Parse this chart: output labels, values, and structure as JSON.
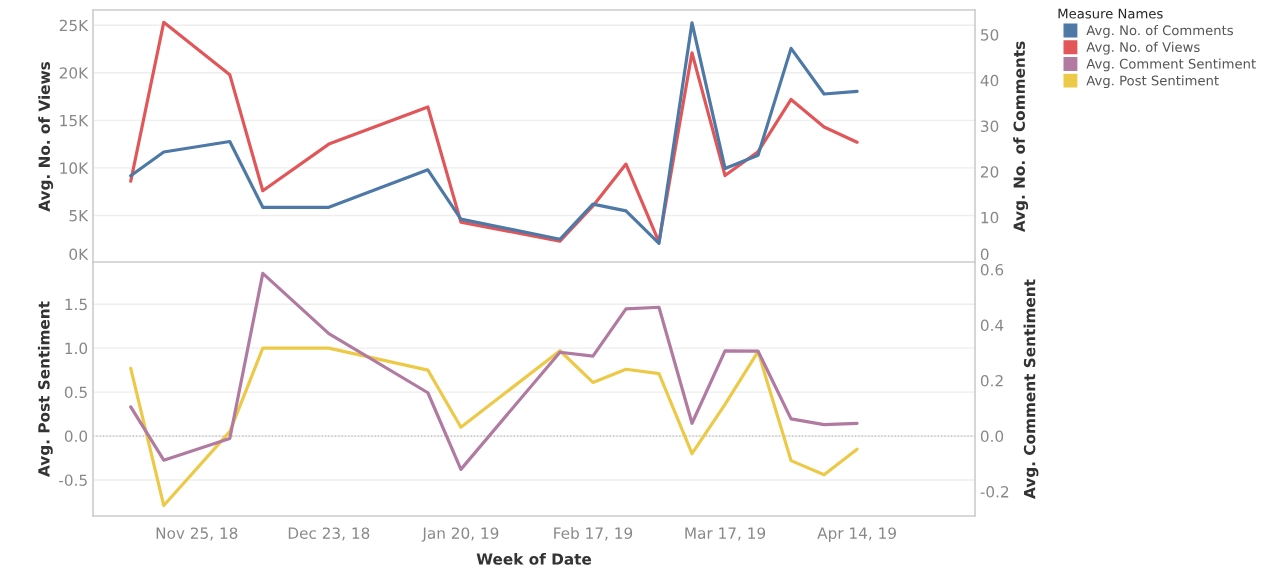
{
  "chart_data": [
    {
      "type": "line",
      "ylabel": "Avg. No. of Views",
      "y2label": "Avg. No. of Comments",
      "legend_title": "Measure Names",
      "legend": "top right",
      "x": [
        "2018-11-11",
        "2018-11-18",
        "2018-12-02",
        "2018-12-09",
        "2018-12-23",
        "2019-01-13",
        "2019-01-20",
        "2019-02-10",
        "2019-02-17",
        "2019-02-24",
        "2019-03-03",
        "2019-03-10",
        "2019-03-17",
        "2019-03-24",
        "2019-03-31",
        "2019-04-07",
        "2019-04-14"
      ],
      "xlim": [
        "2018-11-03",
        "2019-05-09"
      ],
      "xticks": [
        {
          "value": "2018-11-25",
          "label": null
        },
        {
          "value": "2018-12-23",
          "label": null
        },
        {
          "value": "2019-01-20",
          "label": null
        },
        {
          "value": "2019-02-17",
          "label": null
        },
        {
          "value": "2019-03-17",
          "label": null
        },
        {
          "value": "2019-04-14",
          "label": null
        }
      ],
      "ylim": [
        0,
        26600
      ],
      "yticks": [
        {
          "value": 0,
          "label": "0K"
        },
        {
          "value": 5000,
          "label": "5K"
        },
        {
          "value": 10000,
          "label": "10K"
        },
        {
          "value": 15000,
          "label": "15K"
        },
        {
          "value": 20000,
          "label": "20K"
        },
        {
          "value": 25000,
          "label": "25K"
        }
      ],
      "y2lim": [
        0,
        55.4
      ],
      "y2ticks": [
        0,
        10,
        20,
        30,
        40,
        50
      ],
      "tick_labels": "y",
      "grid": "y",
      "series": [
        {
          "name": "Avg. No. of Comments",
          "color": "#4e79a7",
          "axis": "y2",
          "values": [
            19.1,
            24.3,
            26.6,
            12.2,
            12.2,
            20.4,
            9.6,
            5.2,
            12.9,
            11.4,
            4.3,
            52.6,
            20.7,
            23.6,
            47.0,
            37.0,
            37.6
          ]
        },
        {
          "name": "Avg. No. of Views",
          "color": "#e15759",
          "values": [
            8600,
            25300,
            19800,
            7600,
            12500,
            16400,
            4300,
            2300,
            6000,
            10400,
            2200,
            22100,
            9200,
            11700,
            17200,
            14300,
            12700
          ]
        }
      ]
    },
    {
      "type": "line",
      "xlabel": "Week of Date",
      "ylabel": "Avg. Post Sentiment",
      "y2label": "Avg. Comment Sentiment",
      "legend": "top right",
      "x": [
        "2018-11-11",
        "2018-11-18",
        "2018-12-02",
        "2018-12-09",
        "2018-12-23",
        "2019-01-13",
        "2019-01-20",
        "2019-02-10",
        "2019-02-17",
        "2019-02-24",
        "2019-03-03",
        "2019-03-10",
        "2019-03-17",
        "2019-03-24",
        "2019-03-31",
        "2019-04-07",
        "2019-04-14"
      ],
      "xlim": [
        "2018-11-03",
        "2019-05-09"
      ],
      "xticks": [
        {
          "value": "2018-11-25",
          "label": "Nov 25, 18"
        },
        {
          "value": "2018-12-23",
          "label": "Dec 23, 18"
        },
        {
          "value": "2019-01-20",
          "label": "Jan 20, 19"
        },
        {
          "value": "2019-02-17",
          "label": "Feb 17, 19"
        },
        {
          "value": "2019-03-17",
          "label": "Mar 17, 19"
        },
        {
          "value": "2019-04-14",
          "label": "Apr 14, 19"
        }
      ],
      "ylim": [
        -0.91,
        1.98
      ],
      "yticks": [
        {
          "value": -0.5,
          "label": "-0.5"
        },
        {
          "value": 0,
          "label": "0.0"
        },
        0.5,
        {
          "value": 1,
          "label": "1.0"
        },
        1.5
      ],
      "y2lim": [
        -0.288,
        0.627
      ],
      "y2ticks": [
        {
          "value": -0.2,
          "label": "-0.2"
        },
        {
          "value": 0,
          "label": "0.0"
        },
        0.2,
        0.4,
        0.6
      ],
      "grid": "y",
      "ref_lines": [
        {
          "axis": "y",
          "value": 0,
          "label": null,
          "color": "#bbbbbb",
          "line_style": "dotted"
        }
      ],
      "series": [
        {
          "name": "Avg. Comment Sentiment",
          "color": "#b07aa1",
          "axis": "y2",
          "values": [
            0.105,
            -0.087,
            -0.009,
            0.586,
            0.369,
            0.156,
            -0.12,
            0.302,
            0.288,
            0.458,
            0.464,
            0.046,
            0.307,
            0.306,
            0.062,
            0.041,
            0.046
          ]
        },
        {
          "name": "Avg. Post Sentiment",
          "color": "#edc948",
          "values": [
            0.77,
            -0.79,
            0.05,
            1.0,
            1.0,
            0.75,
            0.1,
            0.97,
            0.61,
            0.76,
            0.71,
            -0.2,
            0.36,
            0.96,
            -0.28,
            -0.44,
            -0.15
          ]
        }
      ]
    }
  ]
}
